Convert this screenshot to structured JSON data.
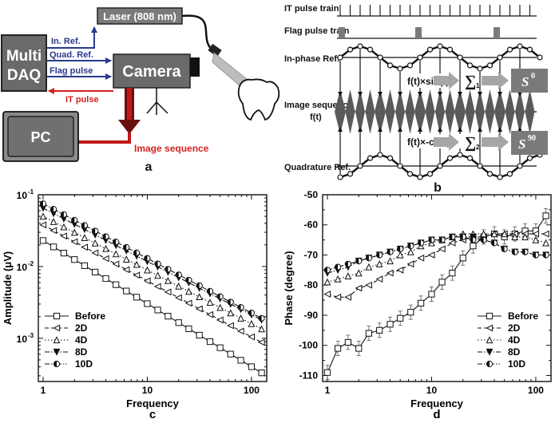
{
  "panel_a": {
    "daq_line1": "Multi",
    "daq_line2": "DAQ",
    "camera": "Camera",
    "laser": "Laser (808 nm)",
    "pc": "PC",
    "sig_in_ref": "In. Ref.",
    "sig_quad_ref": "Quad. Ref.",
    "sig_flag": "Flag pulse",
    "sig_it": "IT pulse",
    "image_sequence": "Image sequence",
    "panel_letter": "a"
  },
  "panel_b": {
    "it_pulse_train": "IT pulse train",
    "flag_pulse_train": "Flag pulse train",
    "in_phase_ref": "In-phase Ref.",
    "image_sequence_1": "Image sequence",
    "image_sequence_2": "f(t)",
    "quadrature_ref": "Quadrature Ref.",
    "formula_sin": "f(t)×sin(t)",
    "formula_cos": "f(t)×-cos(t)",
    "sigma_1_sub": "1",
    "sigma_2_sub": "2",
    "output_s0_base": "S",
    "output_s0_sup": "0",
    "output_s90_base": "S",
    "output_s90_sup": "90",
    "panel_letter": "b"
  },
  "colors": {
    "blue_signal": "#2a3a8c",
    "red_signal": "#d42020",
    "dark_red": "#6a0f0f",
    "box_gray": "#6a6a6a",
    "arrow_gray": "#a6a6a6"
  },
  "chart_data": [
    {
      "type": "line",
      "panel_letter": "c",
      "xlabel": "Frequency",
      "ylabel": "Amplitude (μV)",
      "xscale": "log",
      "yscale": "log",
      "xlim": [
        0.9,
        140
      ],
      "ylim": [
        0.00025,
        0.1
      ],
      "xticks": [
        1,
        10,
        100
      ],
      "xtick_labels": [
        "1",
        "10",
        "100"
      ],
      "yticks": [
        0.001,
        0.01,
        0.1
      ],
      "ytick_labels": [
        "10",
        "10",
        "10"
      ],
      "ytick_exponents": [
        "-3",
        "-2",
        "-1"
      ],
      "legend_position": "bottom-left",
      "series": [
        {
          "name": "Before",
          "marker": "square",
          "dash": "solid",
          "start": [
            1,
            0.023
          ],
          "end": [
            125,
            0.00033
          ]
        },
        {
          "name": "2D",
          "marker": "triangle-left",
          "dash": "dash",
          "start": [
            1,
            0.038
          ],
          "end": [
            125,
            0.00088
          ]
        },
        {
          "name": "4D",
          "marker": "triangle-up",
          "dash": "dot",
          "start": [
            1,
            0.05
          ],
          "end": [
            125,
            0.00135
          ]
        },
        {
          "name": "8D",
          "marker": "triangle-down",
          "dash": "dashdot",
          "start": [
            1,
            0.065
          ],
          "end": [
            125,
            0.0018
          ]
        },
        {
          "name": "10D",
          "marker": "half-circle",
          "dash": "dashdotdot",
          "start": [
            1,
            0.075
          ],
          "end": [
            125,
            0.0019
          ]
        }
      ]
    },
    {
      "type": "line",
      "panel_letter": "d",
      "xlabel": "Frequency",
      "ylabel": "Phase (degree)",
      "xscale": "log",
      "yscale": "linear",
      "xlim": [
        0.9,
        140
      ],
      "ylim": [
        -112,
        -50
      ],
      "xticks": [
        1,
        10,
        100
      ],
      "xtick_labels": [
        "1",
        "10",
        "100"
      ],
      "yticks": [
        -110,
        -100,
        -90,
        -80,
        -70,
        -60,
        -50
      ],
      "ytick_labels": [
        "-110",
        "-100",
        "-90",
        "-80",
        "-70",
        "-60",
        "-50"
      ],
      "legend_position": "bottom-right",
      "series": [
        {
          "name": "Before",
          "marker": "square",
          "dash": "solid",
          "x": [
            1,
            1.26,
            1.58,
            2,
            2.5,
            3.16,
            4,
            5,
            6.3,
            7.9,
            10,
            12.6,
            15.8,
            20,
            25,
            31.6,
            40,
            50,
            63,
            79,
            100,
            125
          ],
          "y": [
            -109,
            -101,
            -99,
            -101,
            -96,
            -95,
            -93,
            -91,
            -89,
            -86,
            -83,
            -79,
            -76,
            -71,
            -67,
            -64,
            -63,
            -64,
            -63,
            -62,
            -62,
            -57
          ]
        },
        {
          "name": "2D",
          "marker": "triangle-left",
          "dash": "dash",
          "x": [
            1,
            1.26,
            1.58,
            2,
            2.5,
            3.16,
            4,
            5,
            6.3,
            7.9,
            10,
            12.6,
            15.8,
            20,
            25,
            31.6,
            40,
            50,
            63,
            79,
            100,
            125
          ],
          "y": [
            -83,
            -84,
            -84,
            -81,
            -80,
            -78,
            -76,
            -75,
            -73,
            -71,
            -70,
            -68,
            -66,
            -65,
            -64,
            -64,
            -63,
            -63,
            -63,
            -63,
            -63,
            -63
          ]
        },
        {
          "name": "4D",
          "marker": "triangle-up",
          "dash": "dot",
          "x": [
            1,
            1.26,
            1.58,
            2,
            2.5,
            3.16,
            4,
            5,
            6.3,
            7.9,
            10,
            12.6,
            15.8,
            20,
            25,
            31.6,
            40,
            50,
            63,
            79,
            100,
            125
          ],
          "y": [
            -79,
            -78,
            -77,
            -76,
            -74,
            -73,
            -72,
            -70,
            -69,
            -67,
            -66,
            -65,
            -64,
            -63,
            -63,
            -63,
            -63,
            -63,
            -64,
            -64,
            -65,
            -66
          ]
        },
        {
          "name": "8D",
          "marker": "triangle-down",
          "dash": "dashdot",
          "x": [
            1,
            1.26,
            1.58,
            2,
            2.5,
            3.16,
            4,
            5,
            6.3,
            7.9,
            10,
            12.6,
            15.8,
            20,
            25,
            31.6,
            40,
            50,
            63,
            79,
            100,
            125
          ],
          "y": [
            -76,
            -75,
            -74,
            -72,
            -71,
            -70,
            -69,
            -68,
            -67,
            -66,
            -65,
            -65,
            -64,
            -64,
            -64,
            -65,
            -66,
            -68,
            -69,
            -69,
            -70,
            -70
          ]
        },
        {
          "name": "10D",
          "marker": "half-circle",
          "dash": "dashdotdot",
          "x": [
            1,
            1.26,
            1.58,
            2,
            2.5,
            3.16,
            4,
            5,
            6.3,
            7.9,
            10,
            12.6,
            15.8,
            20,
            25,
            31.6,
            40,
            50,
            63,
            79,
            100,
            125
          ],
          "y": [
            -75,
            -74,
            -73,
            -72,
            -71,
            -70,
            -69,
            -68,
            -67,
            -66,
            -65,
            -65,
            -64,
            -64,
            -65,
            -65,
            -66,
            -68,
            -69,
            -69,
            -70,
            -70
          ]
        }
      ]
    }
  ]
}
